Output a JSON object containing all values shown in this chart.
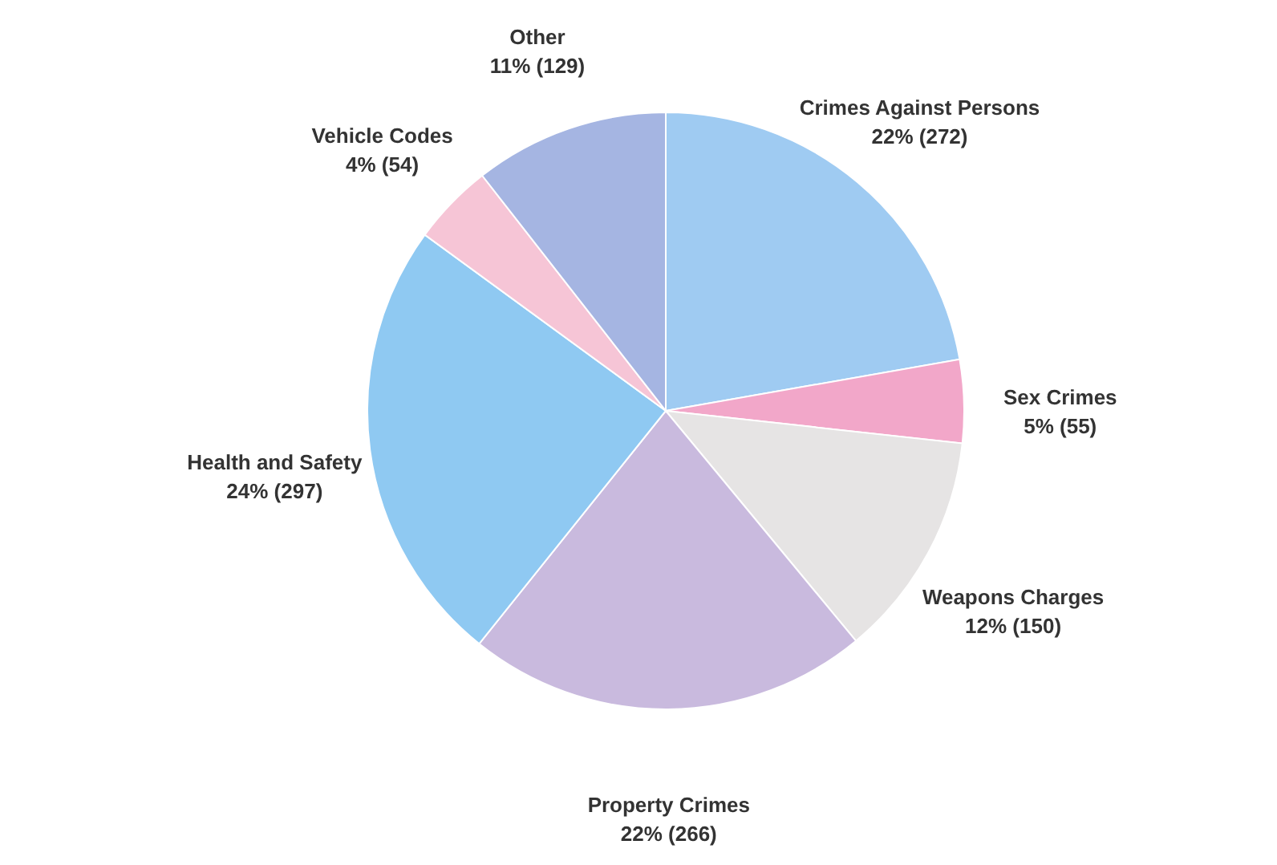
{
  "chart_data": {
    "type": "pie",
    "categories": [
      "Crimes Against Persons",
      "Sex Crimes",
      "Weapons Charges",
      "Property Crimes",
      "Health and Safety",
      "Vehicle Codes",
      "Other"
    ],
    "values": [
      272,
      55,
      150,
      266,
      297,
      54,
      129
    ],
    "value_labels": [
      "22% (272)",
      "5% (55)",
      "12% (150)",
      "22% (266)",
      "24% (297)",
      "4% (54)",
      "11% (129)"
    ],
    "colors": [
      "#9fcbf2",
      "#f2a7c9",
      "#e6e4e4",
      "#c9bade",
      "#8fc9f2",
      "#f6c5d6",
      "#a5b5e2"
    ]
  }
}
